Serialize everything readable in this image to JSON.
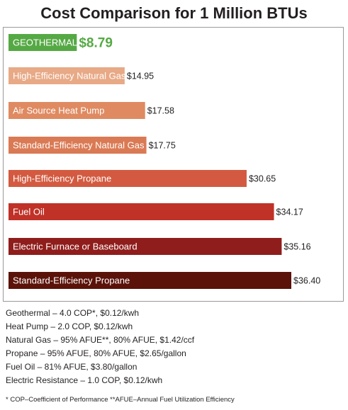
{
  "title": "Cost Comparison for 1 Million BTUs",
  "colors": {
    "geothermal": "#55a944",
    "text_dark": "#231f20",
    "border": "#9a9a9a"
  },
  "chart_data": {
    "type": "bar",
    "orientation": "horizontal",
    "title": "Cost Comparison for 1 Million BTUs",
    "categories": [
      "GEOTHERMAL",
      "High-Efficiency Natural Gas",
      "Air Source Heat Pump",
      "Standard-Efficiency Natural Gas",
      "High-Efficiency Propane",
      "Fuel Oil",
      "Electric Furnace or Baseboard",
      "Standard-Efficiency Propane"
    ],
    "values": [
      8.79,
      14.95,
      17.58,
      17.75,
      30.65,
      34.17,
      35.16,
      36.4
    ],
    "value_labels": [
      "$8.79",
      "$14.95",
      "$17.58",
      "$17.75",
      "$30.65",
      "$34.17",
      "$35.16",
      "$36.40"
    ],
    "bar_colors": [
      "#55a944",
      "#e8a986",
      "#df8a61",
      "#da7a54",
      "#d35a40",
      "#c03127",
      "#8f1d1b",
      "#5b1209"
    ],
    "xlim": [
      0,
      36.4
    ],
    "grid": false,
    "legend": "none"
  },
  "notes": [
    "Geothermal – 4.0 COP*, $0.12/kwh",
    "Heat Pump – 2.0 COP, $0.12/kwh",
    "Natural Gas – 95% AFUE**, 80% AFUE, $1.42/ccf",
    "Propane – 95% AFUE, 80% AFUE, $2.65/gallon",
    "Fuel Oil – 81% AFUE, $3.80/gallon",
    "Electric Resistance – 1.0 COP, $0.12/kwh"
  ],
  "footnote": "* COP–Coefficient of Performance  **AFUE–Annual Fuel Utilization Efficiency"
}
